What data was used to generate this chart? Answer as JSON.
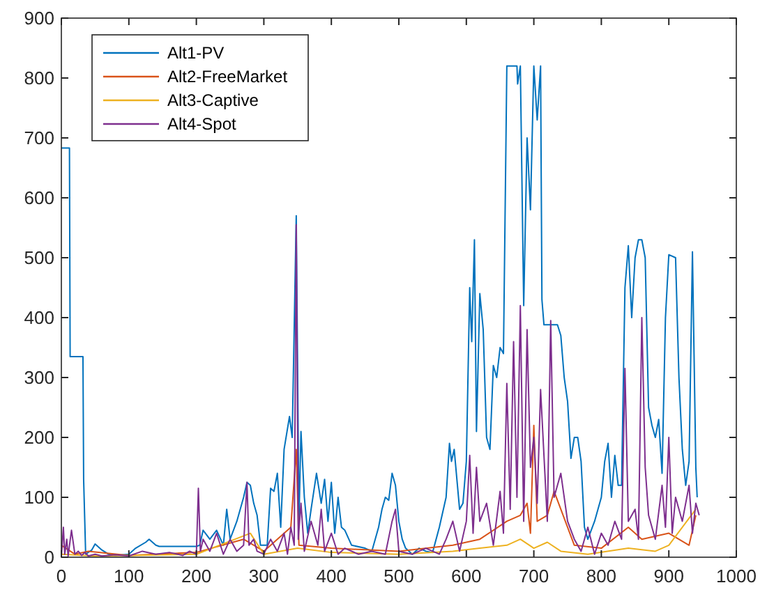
{
  "chart_data": {
    "type": "line",
    "xlim": [
      0,
      1000
    ],
    "ylim": [
      0,
      900
    ],
    "xticks": [
      0,
      100,
      200,
      300,
      400,
      500,
      600,
      700,
      800,
      900,
      1000
    ],
    "yticks": [
      0,
      100,
      200,
      300,
      400,
      500,
      600,
      700,
      800,
      900
    ],
    "grid": false,
    "legend": "top left",
    "series": [
      {
        "name": "Alt1-PV",
        "color": "#0072bd",
        "x": [
          0,
          12,
          13,
          32,
          33,
          36,
          45,
          50,
          60,
          70,
          80,
          100,
          110,
          125,
          130,
          140,
          145,
          200,
          205,
          210,
          220,
          230,
          240,
          245,
          250,
          260,
          270,
          275,
          280,
          285,
          290,
          295,
          305,
          310,
          315,
          320,
          325,
          330,
          338,
          342,
          348,
          352,
          355,
          360,
          365,
          370,
          378,
          385,
          390,
          395,
          400,
          405,
          410,
          415,
          420,
          430,
          450,
          460,
          470,
          475,
          480,
          485,
          490,
          495,
          500,
          505,
          510,
          520,
          530,
          540,
          550,
          560,
          570,
          575,
          578,
          582,
          590,
          595,
          600,
          605,
          608,
          612,
          615,
          620,
          625,
          630,
          635,
          640,
          645,
          650,
          655,
          660,
          675,
          676,
          680,
          685,
          690,
          695,
          700,
          705,
          710,
          712,
          715,
          735,
          740,
          745,
          750,
          755,
          760,
          765,
          770,
          775,
          780,
          790,
          800,
          805,
          810,
          815,
          820,
          825,
          830,
          835,
          840,
          845,
          850,
          855,
          860,
          865,
          870,
          875,
          880,
          885,
          890,
          895,
          900,
          910,
          915,
          920,
          925,
          930,
          935,
          940,
          942
        ],
        "values": [
          683,
          683,
          335,
          335,
          130,
          5,
          12,
          22,
          12,
          5,
          3,
          5,
          15,
          25,
          30,
          20,
          18,
          18,
          20,
          45,
          30,
          45,
          20,
          80,
          30,
          60,
          100,
          125,
          120,
          90,
          70,
          20,
          20,
          115,
          110,
          140,
          50,
          180,
          235,
          200,
          570,
          60,
          210,
          100,
          40,
          80,
          140,
          90,
          130,
          60,
          125,
          40,
          100,
          50,
          45,
          20,
          15,
          10,
          50,
          80,
          100,
          95,
          140,
          120,
          60,
          30,
          15,
          5,
          15,
          10,
          8,
          50,
          100,
          190,
          160,
          180,
          80,
          90,
          160,
          450,
          360,
          530,
          210,
          440,
          380,
          200,
          180,
          320,
          300,
          350,
          340,
          820,
          820,
          790,
          820,
          420,
          700,
          580,
          820,
          730,
          820,
          430,
          388,
          388,
          370,
          300,
          260,
          165,
          200,
          200,
          160,
          50,
          30,
          60,
          100,
          160,
          190,
          100,
          170,
          120,
          120,
          450,
          520,
          400,
          500,
          530,
          530,
          500,
          250,
          220,
          200,
          230,
          140,
          400,
          505,
          500,
          300,
          180,
          120,
          160,
          510,
          150,
          100
        ]
      },
      {
        "name": "Alt2-FreeMarket",
        "color": "#d95319",
        "x": [
          0,
          20,
          40,
          100,
          200,
          270,
          300,
          340,
          348,
          352,
          400,
          500,
          580,
          620,
          660,
          680,
          690,
          695,
          700,
          705,
          720,
          730,
          740,
          760,
          800,
          840,
          860,
          900,
          930,
          940
        ],
        "values": [
          20,
          5,
          10,
          3,
          8,
          30,
          10,
          50,
          180,
          20,
          15,
          10,
          20,
          30,
          60,
          70,
          90,
          40,
          220,
          60,
          70,
          110,
          80,
          20,
          15,
          50,
          30,
          40,
          20,
          70
        ]
      },
      {
        "name": "Alt3-Captive",
        "color": "#edb120",
        "x": [
          0,
          50,
          100,
          200,
          280,
          300,
          350,
          400,
          500,
          580,
          620,
          660,
          680,
          700,
          720,
          740,
          780,
          840,
          880,
          900,
          940
        ],
        "values": [
          5,
          2,
          3,
          5,
          40,
          5,
          15,
          8,
          5,
          10,
          15,
          20,
          30,
          15,
          25,
          10,
          5,
          15,
          10,
          20,
          80
        ]
      },
      {
        "name": "Alt4-Spot",
        "color": "#7e2f8e",
        "x": [
          0,
          3,
          5,
          8,
          10,
          15,
          20,
          25,
          30,
          35,
          40,
          50,
          60,
          80,
          100,
          120,
          140,
          160,
          180,
          190,
          200,
          203,
          206,
          210,
          220,
          230,
          240,
          250,
          260,
          270,
          275,
          278,
          285,
          290,
          300,
          310,
          320,
          330,
          335,
          340,
          345,
          348,
          351,
          355,
          360,
          370,
          380,
          385,
          390,
          400,
          410,
          420,
          440,
          460,
          480,
          490,
          495,
          500,
          520,
          540,
          560,
          570,
          580,
          590,
          600,
          605,
          610,
          615,
          620,
          630,
          640,
          650,
          655,
          660,
          665,
          670,
          675,
          680,
          685,
          690,
          695,
          700,
          705,
          710,
          720,
          725,
          730,
          740,
          750,
          760,
          770,
          780,
          790,
          800,
          810,
          820,
          830,
          835,
          840,
          850,
          855,
          860,
          865,
          870,
          880,
          890,
          895,
          900,
          905,
          910,
          920,
          930,
          935,
          940,
          945
        ],
        "values": [
          0,
          50,
          5,
          30,
          2,
          45,
          5,
          10,
          3,
          8,
          2,
          5,
          2,
          4,
          2,
          10,
          5,
          8,
          3,
          10,
          5,
          115,
          10,
          30,
          10,
          40,
          5,
          30,
          10,
          20,
          125,
          20,
          30,
          10,
          5,
          30,
          10,
          40,
          5,
          50,
          20,
          555,
          30,
          90,
          10,
          60,
          20,
          80,
          10,
          40,
          5,
          15,
          5,
          10,
          5,
          60,
          80,
          10,
          5,
          15,
          5,
          30,
          60,
          10,
          60,
          170,
          40,
          150,
          60,
          90,
          20,
          110,
          40,
          290,
          80,
          360,
          100,
          420,
          60,
          380,
          150,
          200,
          90,
          280,
          60,
          395,
          100,
          140,
          60,
          30,
          10,
          50,
          5,
          40,
          20,
          60,
          30,
          315,
          60,
          80,
          30,
          400,
          150,
          70,
          30,
          120,
          50,
          200,
          40,
          100,
          60,
          120,
          40,
          90,
          70
        ]
      }
    ]
  }
}
